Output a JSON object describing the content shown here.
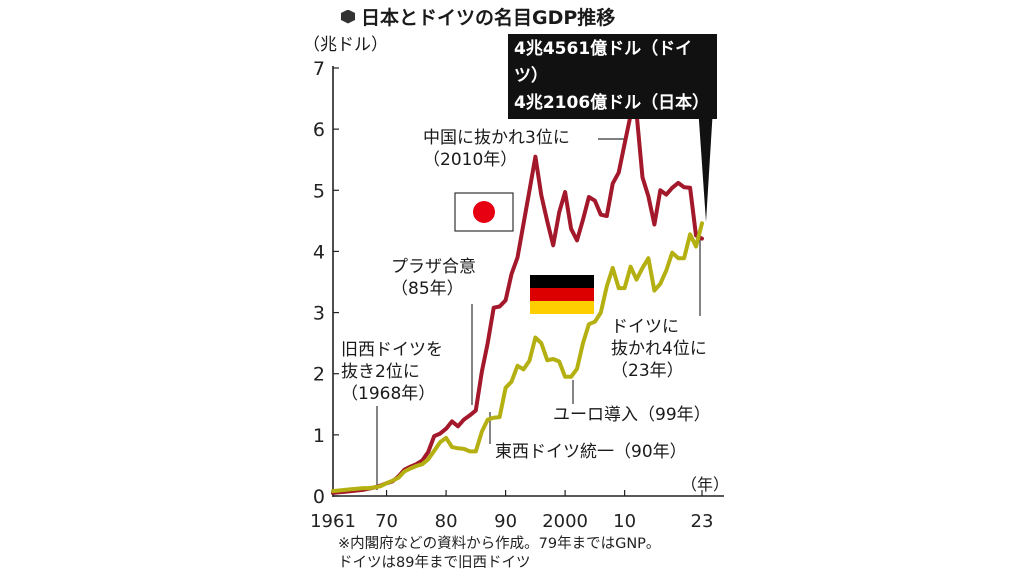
{
  "title": "日本とドイツの名目GDP推移",
  "title_icon": "cube-icon",
  "y_unit_label": "（兆ドル）",
  "callout": {
    "germany_value": "4兆4561億ドル（ドイツ）",
    "japan_value": "4兆2106億ドル（日本）"
  },
  "annotations": {
    "surpass_west_germany": [
      "旧西ドイツを",
      "抜き2位に",
      "（1968年）"
    ],
    "plaza_accord": [
      "プラザ合意",
      "（85年）"
    ],
    "passed_by_china": [
      "中国に抜かれ3位に",
      "（2010年）"
    ],
    "reunification": "東西ドイツ統一（90年）",
    "euro_intro": "ユーロ導入（99年）",
    "passed_by_germany": [
      "ドイツに",
      "抜かれ4位に",
      "（23年）"
    ]
  },
  "x_unit_label": "（年）",
  "note": [
    "※内閣府などの資料から作成。79年まではGNP。",
    "ドイツは89年まで旧西ドイツ"
  ],
  "flags": {
    "japan": {
      "name": "japan-flag-icon",
      "bg": "#ffffff",
      "circle": "#e60012"
    },
    "germany": {
      "name": "germany-flag-icon",
      "stripes": [
        "#000000",
        "#dd0000",
        "#ffce00"
      ]
    }
  },
  "colors": {
    "japan": "#a3182a",
    "germany": "#b5b012",
    "axis": "#222222"
  },
  "chart_data": {
    "type": "line",
    "title": "日本とドイツの名目GDP推移",
    "ylabel": "兆ドル",
    "xlabel": "年",
    "ylim": [
      0,
      7
    ],
    "xlim": [
      1961,
      2023
    ],
    "yticks": [
      0,
      1,
      2,
      3,
      4,
      5,
      6,
      7
    ],
    "xticks": [
      {
        "value": 1961,
        "label": "1961"
      },
      {
        "value": 1970,
        "label": "70"
      },
      {
        "value": 1980,
        "label": "80"
      },
      {
        "value": 1990,
        "label": "90"
      },
      {
        "value": 2000,
        "label": "2000"
      },
      {
        "value": 2010,
        "label": "10"
      },
      {
        "value": 2023,
        "label": "23"
      }
    ],
    "grid": false,
    "legend": "flags",
    "series": [
      {
        "key": "japan",
        "x": [
          1961,
          1962,
          1963,
          1964,
          1965,
          1966,
          1967,
          1968,
          1969,
          1970,
          1971,
          1972,
          1973,
          1974,
          1975,
          1976,
          1977,
          1978,
          1979,
          1980,
          1981,
          1982,
          1983,
          1984,
          1985,
          1986,
          1987,
          1988,
          1989,
          1990,
          1991,
          1992,
          1993,
          1994,
          1995,
          1996,
          1997,
          1998,
          1999,
          2000,
          2001,
          2002,
          2003,
          2004,
          2005,
          2006,
          2007,
          2008,
          2009,
          2010,
          2011,
          2012,
          2013,
          2014,
          2015,
          2016,
          2017,
          2018,
          2019,
          2020,
          2021,
          2022,
          2023
        ],
        "values": [
          0.05,
          0.06,
          0.07,
          0.08,
          0.09,
          0.1,
          0.12,
          0.14,
          0.17,
          0.21,
          0.24,
          0.32,
          0.43,
          0.48,
          0.52,
          0.58,
          0.72,
          0.98,
          1.02,
          1.1,
          1.22,
          1.14,
          1.25,
          1.32,
          1.4,
          2.03,
          2.5,
          3.08,
          3.1,
          3.2,
          3.63,
          3.9,
          4.45,
          4.99,
          5.55,
          4.92,
          4.49,
          4.1,
          4.64,
          4.97,
          4.37,
          4.18,
          4.52,
          4.89,
          4.83,
          4.6,
          4.58,
          5.11,
          5.29,
          5.76,
          6.23,
          6.27,
          5.21,
          4.9,
          4.44,
          5.0,
          4.93,
          5.04,
          5.12,
          5.05,
          5.04,
          4.26,
          4.21
        ]
      },
      {
        "key": "germany",
        "x": [
          1961,
          1962,
          1963,
          1964,
          1965,
          1966,
          1967,
          1968,
          1969,
          1970,
          1971,
          1972,
          1973,
          1974,
          1975,
          1976,
          1977,
          1978,
          1979,
          1980,
          1981,
          1982,
          1983,
          1984,
          1985,
          1986,
          1987,
          1988,
          1989,
          1990,
          1991,
          1992,
          1993,
          1994,
          1995,
          1996,
          1997,
          1998,
          1999,
          2000,
          2001,
          2002,
          2003,
          2004,
          2005,
          2006,
          2007,
          2008,
          2009,
          2010,
          2011,
          2012,
          2013,
          2014,
          2015,
          2016,
          2017,
          2018,
          2019,
          2020,
          2021,
          2022,
          2023
        ],
        "values": [
          0.08,
          0.09,
          0.1,
          0.11,
          0.12,
          0.13,
          0.13,
          0.14,
          0.16,
          0.21,
          0.25,
          0.3,
          0.4,
          0.45,
          0.49,
          0.52,
          0.6,
          0.74,
          0.88,
          0.95,
          0.8,
          0.78,
          0.77,
          0.73,
          0.73,
          1.05,
          1.25,
          1.28,
          1.29,
          1.77,
          1.87,
          2.13,
          2.07,
          2.21,
          2.59,
          2.5,
          2.22,
          2.24,
          2.2,
          1.95,
          1.95,
          2.08,
          2.5,
          2.81,
          2.85,
          3.0,
          3.43,
          3.73,
          3.4,
          3.4,
          3.75,
          3.54,
          3.73,
          3.89,
          3.36,
          3.47,
          3.69,
          3.98,
          3.89,
          3.89,
          4.28,
          4.08,
          4.46
        ]
      }
    ]
  }
}
